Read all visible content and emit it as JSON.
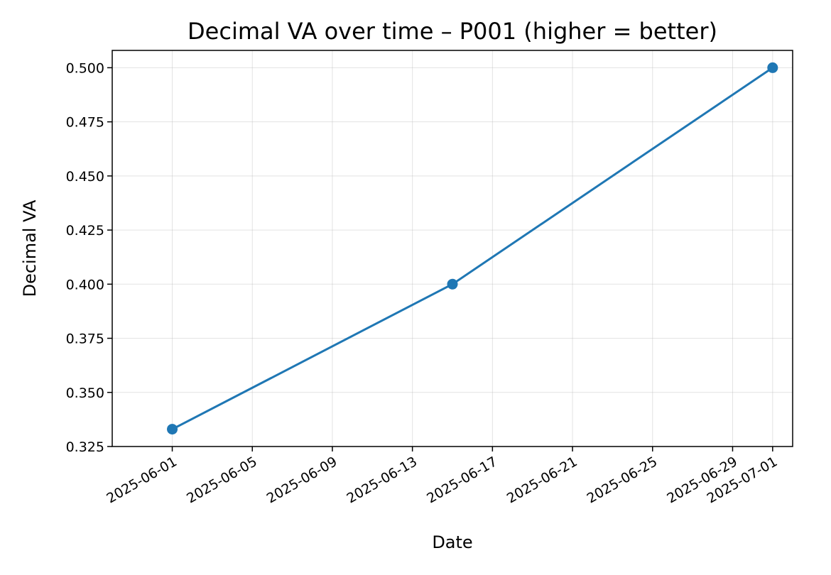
{
  "chart_data": {
    "type": "line",
    "title": "Decimal VA over time – P001 (higher = better)",
    "xlabel": "Date",
    "ylabel": "Decimal VA",
    "x_type": "date",
    "xlim": [
      "2025-05-29",
      "2025-07-02"
    ],
    "ylim": [
      0.325,
      0.508
    ],
    "x_ticks": [
      "2025-06-01",
      "2025-06-05",
      "2025-06-09",
      "2025-06-13",
      "2025-06-17",
      "2025-06-21",
      "2025-06-25",
      "2025-06-29",
      "2025-07-01"
    ],
    "y_ticks": [
      "0.325",
      "0.350",
      "0.375",
      "0.400",
      "0.425",
      "0.450",
      "0.475",
      "0.500"
    ],
    "grid": true,
    "colors": {
      "series": "#1f77b4"
    },
    "series": [
      {
        "x": [
          "2025-06-01",
          "2025-06-15",
          "2025-07-01"
        ],
        "y": [
          0.333,
          0.4,
          0.5
        ]
      }
    ]
  }
}
